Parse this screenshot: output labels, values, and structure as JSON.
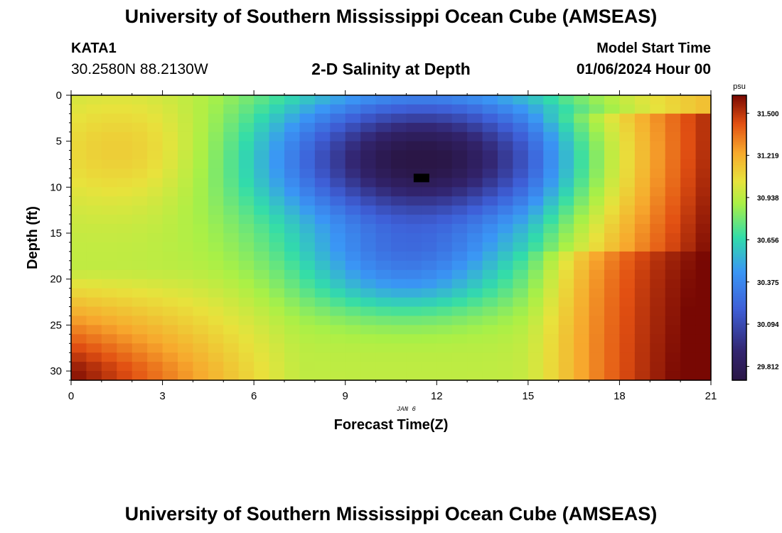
{
  "header": {
    "title": "University of Southern Mississippi Ocean Cube (AMSEAS)",
    "station_id": "KATA1",
    "coordinates": "30.2580N  88.2130W",
    "subtitle": "2-D Salinity at Depth",
    "model_start_label": "Model Start Time",
    "model_start_value": "01/06/2024 Hour 00"
  },
  "footer": {
    "title": "University of Southern Mississippi Ocean Cube (AMSEAS)"
  },
  "chart_data": {
    "type": "heatmap",
    "title": "2-D Salinity at Depth",
    "xlabel": "Forecast Time(Z)",
    "ylabel": "Depth (ft)",
    "x_ticks": [
      "0",
      "3",
      "6",
      "9",
      "12",
      "15",
      "18",
      "21"
    ],
    "y_ticks": [
      "0",
      "5",
      "10",
      "15",
      "20",
      "25",
      "30"
    ],
    "xlim": [
      0,
      21
    ],
    "ylim": [
      0,
      31
    ],
    "date_annotation": "JAN 6",
    "colorbar": {
      "unit": "psu",
      "ticks": [
        "31.500",
        "31.219",
        "30.938",
        "30.656",
        "30.375",
        "30.094",
        "29.812"
      ],
      "range": [
        29.72,
        31.62
      ]
    },
    "field": {
      "description": "salinity (psu) vs forecast hour and depth",
      "surface_fresh_min": {
        "x": 11.5,
        "depth": 9,
        "value": 29.72
      },
      "bottom_left_max": 31.6,
      "bottom_right_max": 31.6,
      "background": 30.95
    },
    "marker": {
      "x": 11.5,
      "depth": 9,
      "label": "station depth marker"
    },
    "colors": {
      "low": "#2a1646",
      "mid_low": "#3a8af0",
      "mid": "#32e2a0",
      "mid_high": "#d2e83a",
      "high": "#f5a52a",
      "max": "#7a0a03"
    }
  }
}
